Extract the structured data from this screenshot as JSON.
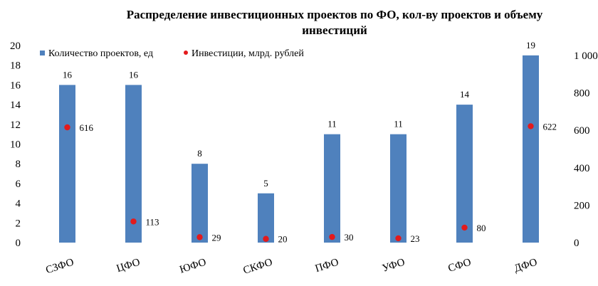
{
  "chart_data": {
    "type": "bar+scatter",
    "title_line1": "Распределение  инвестиционных  проектов  по ФО, кол-ву проектов  и объему",
    "title_line2": "инвестиций",
    "categories": [
      "СЗФО",
      "ЦФО",
      "ЮФО",
      "СКФО",
      "ПФО",
      "УФО",
      "СФО",
      "ДФО"
    ],
    "series": [
      {
        "name": "Количество проектов, ед",
        "axis": "left",
        "type": "bar",
        "color": "#4f81bd",
        "values": [
          16,
          16,
          8,
          5,
          11,
          11,
          14,
          19
        ]
      },
      {
        "name": "Инвестиции, млрд. рублей",
        "axis": "right",
        "type": "scatter",
        "color": "#e31a1c",
        "values": [
          616,
          113,
          29,
          20,
          30,
          23,
          80,
          622
        ]
      }
    ],
    "left_axis": {
      "min": 0,
      "max": 20,
      "step": 2,
      "ticks": [
        "0",
        "2",
        "4",
        "6",
        "8",
        "10",
        "12",
        "14",
        "16",
        "18",
        "20"
      ]
    },
    "right_axis": {
      "min": 0,
      "max": 1100,
      "step": 200,
      "ticks": [
        "0",
        "200",
        "400",
        "600",
        "800",
        "1 000"
      ]
    },
    "legend_position": "top-left",
    "grid": false
  }
}
